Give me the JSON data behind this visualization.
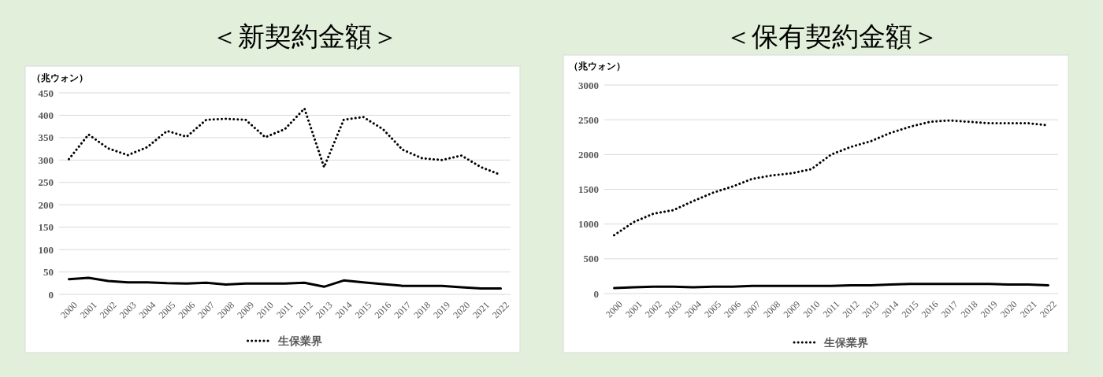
{
  "chart_data": [
    {
      "type": "line",
      "title": "＜新契約金額＞",
      "ylabel": "（兆ウォン）",
      "categories": [
        "2000",
        "2001",
        "2002",
        "2003",
        "2004",
        "2005",
        "2006",
        "2007",
        "2008",
        "2009",
        "2010",
        "2011",
        "2012",
        "2013",
        "2014",
        "2015",
        "2016",
        "2017",
        "2018",
        "2019",
        "2020",
        "2021",
        "2022"
      ],
      "series": [
        {
          "color": "#000000",
          "line_style": "solid",
          "values": [
            34,
            37,
            30,
            27,
            27,
            25,
            24,
            26,
            22,
            24,
            24,
            24,
            26,
            17,
            31,
            27,
            23,
            19,
            19,
            19,
            16,
            13,
            13
          ]
        },
        {
          "name": "生保業界",
          "color": "#000000",
          "line_style": "dotted",
          "values": [
            302,
            357,
            326,
            311,
            329,
            365,
            352,
            390,
            392,
            390,
            351,
            369,
            415,
            284,
            390,
            396,
            369,
            323,
            304,
            300,
            310,
            284,
            267
          ]
        }
      ],
      "ylim": [
        0,
        450
      ],
      "yticks": [
        0,
        50,
        100,
        150,
        200,
        250,
        300,
        350,
        400,
        450
      ],
      "grid": "y",
      "legend": "bottom"
    },
    {
      "type": "line",
      "title": "＜保有契約金額＞",
      "ylabel": "（兆ウォン）",
      "categories": [
        "2000",
        "2001",
        "2002",
        "2003",
        "2004",
        "2005",
        "2006",
        "2007",
        "2008",
        "2009",
        "2010",
        "2011",
        "2012",
        "2013",
        "2014",
        "2015",
        "2016",
        "2017",
        "2018",
        "2019",
        "2020",
        "2021",
        "2022"
      ],
      "series": [
        {
          "color": "#000000",
          "line_style": "solid",
          "values": [
            80,
            90,
            100,
            100,
            90,
            100,
            100,
            110,
            110,
            110,
            110,
            110,
            120,
            120,
            130,
            140,
            140,
            140,
            140,
            140,
            130,
            130,
            120
          ]
        },
        {
          "name": "生保業界",
          "color": "#000000",
          "line_style": "dotted",
          "values": [
            840,
            1030,
            1150,
            1200,
            1330,
            1450,
            1540,
            1650,
            1700,
            1730,
            1790,
            2000,
            2110,
            2190,
            2310,
            2400,
            2470,
            2490,
            2470,
            2450,
            2450,
            2450,
            2420
          ]
        }
      ],
      "ylim": [
        0,
        3000
      ],
      "yticks": [
        0,
        500,
        1000,
        1500,
        2000,
        2500,
        3000
      ],
      "grid": "y",
      "legend": "bottom"
    }
  ]
}
